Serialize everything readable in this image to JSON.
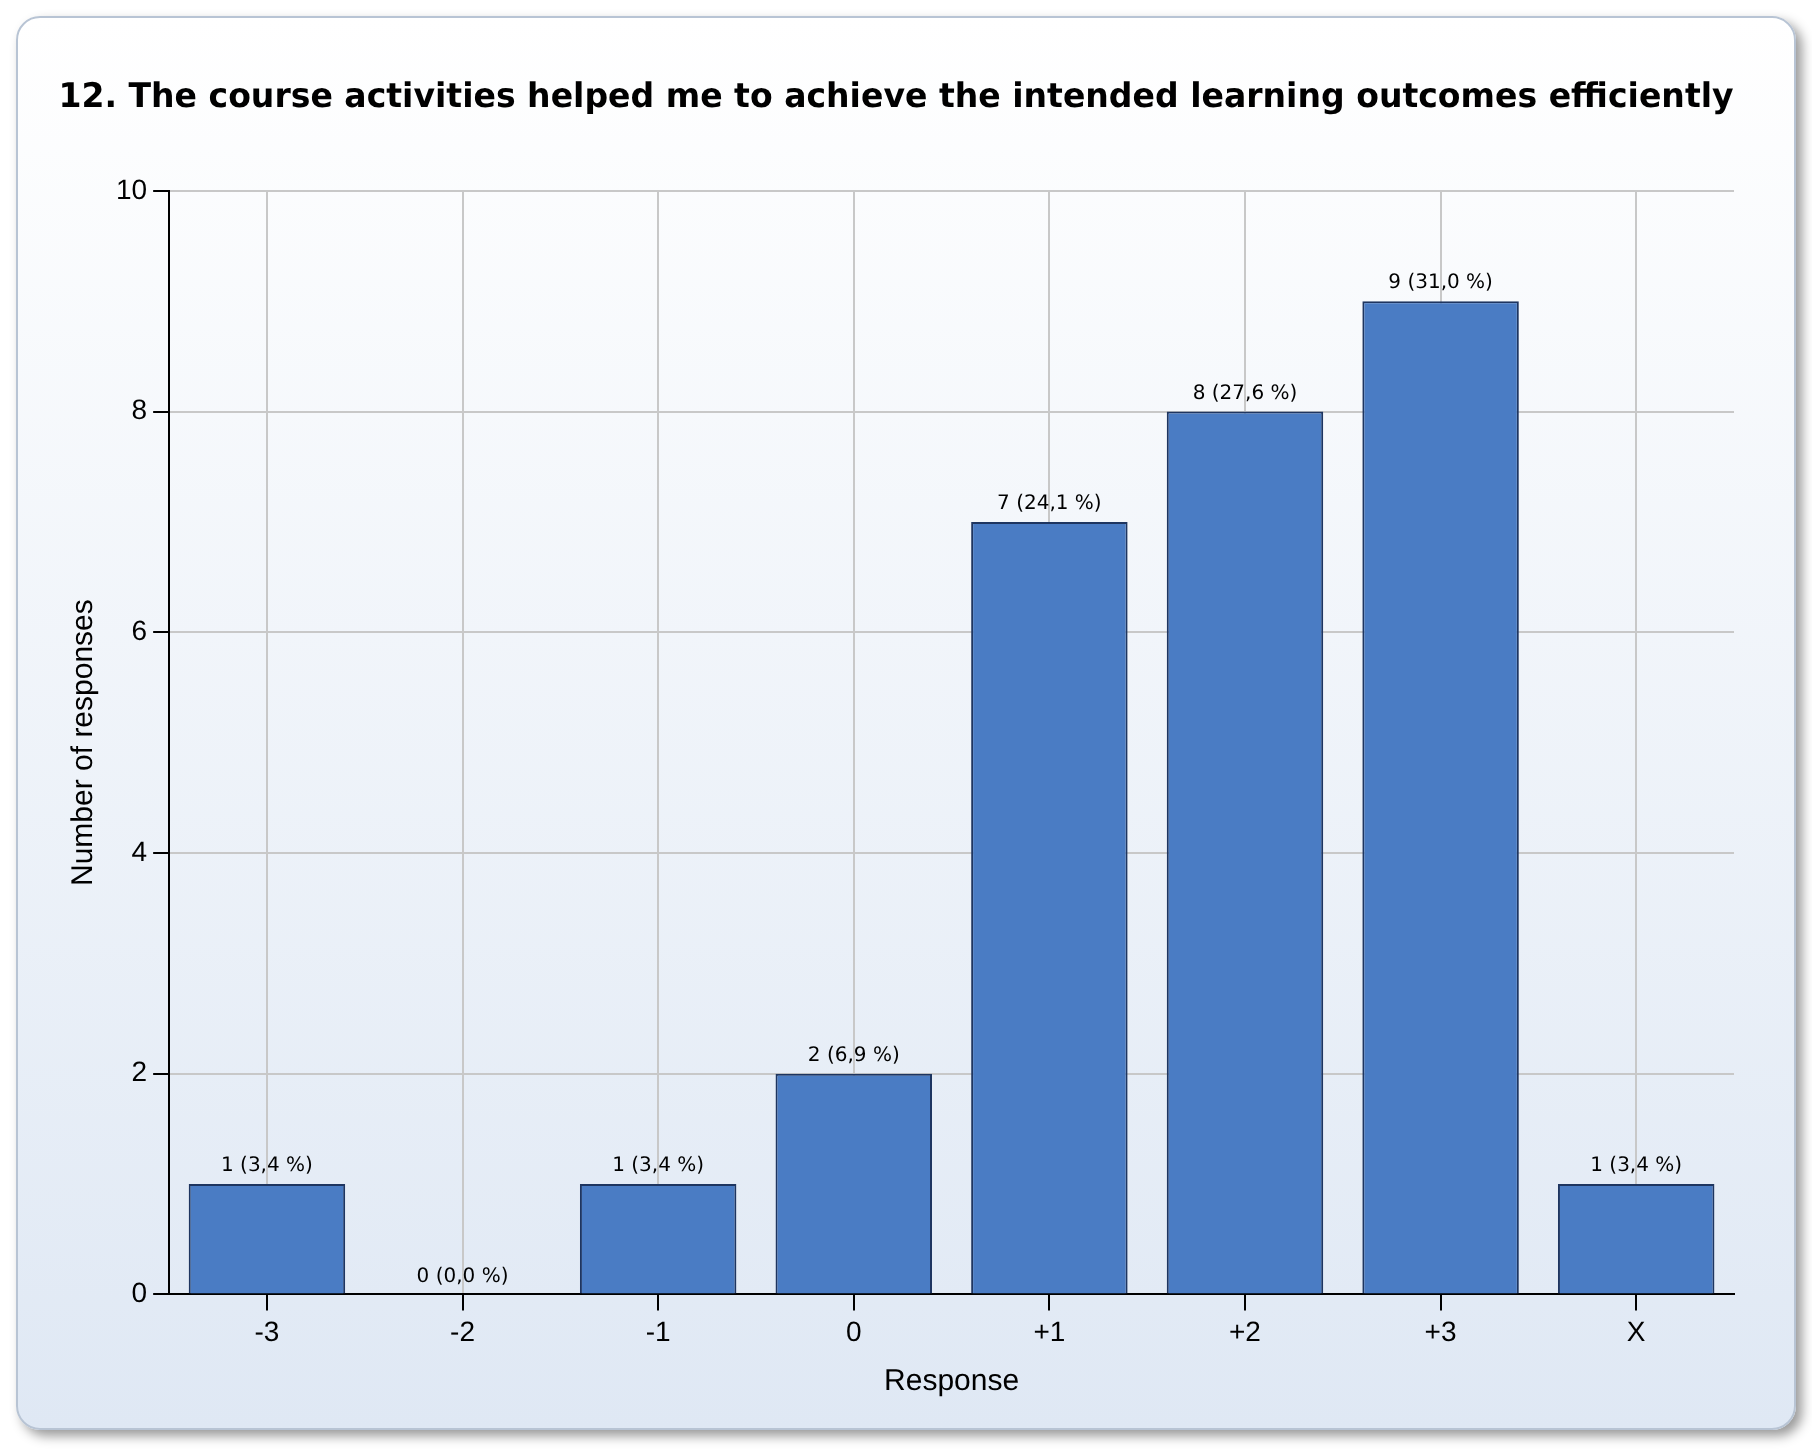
{
  "chart_data": {
    "type": "bar",
    "title": "12. The course activities helped me to achieve the intended learning outcomes efficiently",
    "xlabel": "Response",
    "ylabel": "Number of responses",
    "categories": [
      "-3",
      "-2",
      "-1",
      "0",
      "+1",
      "+2",
      "+3",
      "X"
    ],
    "values": [
      1,
      0,
      1,
      2,
      7,
      8,
      9,
      1
    ],
    "value_labels": [
      "1 (3,4 %)",
      "0 (0,0 %)",
      "1 (3,4 %)",
      "2 (6,9 %)",
      "7 (24,1 %)",
      "8 (27,6 %)",
      "9 (31,0 %)",
      "1 (3,4 %)"
    ],
    "color": "#4a7cc4",
    "ylim": [
      0,
      10
    ],
    "yticks": [
      0,
      2,
      4,
      6,
      8,
      10
    ],
    "grid": true,
    "legend": false
  }
}
